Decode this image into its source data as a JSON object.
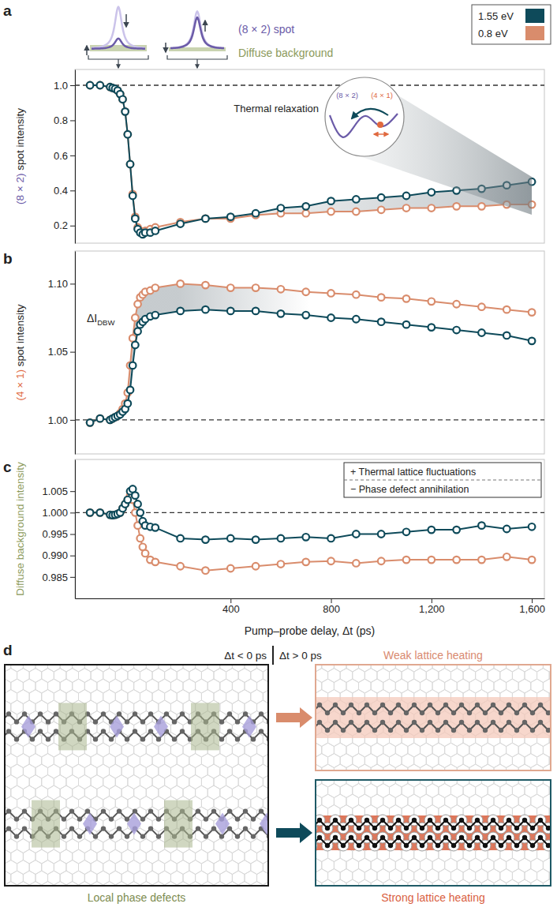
{
  "chart_data": [
    {
      "type": "line",
      "panel": "a",
      "y_label": "(8 × 2) spot intensity",
      "x": [
        -160,
        -120,
        -80,
        -70,
        -60,
        -50,
        -40,
        -30,
        -20,
        -10,
        0,
        10,
        20,
        30,
        40,
        50,
        60,
        80,
        100,
        200,
        300,
        400,
        500,
        600,
        700,
        800,
        900,
        1000,
        1100,
        1200,
        1300,
        1400,
        1500,
        1600
      ],
      "xlim": [
        -220,
        1650
      ],
      "ylim": [
        0.1,
        1.09
      ],
      "yticks": [
        0.2,
        0.4,
        0.6,
        0.8,
        {
          "value": 1,
          "label": "1.0"
        }
      ],
      "tick_labels": "y",
      "reference": 1,
      "legend": "top-right",
      "series": [
        {
          "name": "1.55 eV",
          "color": "#0e4a5a",
          "marker": "circle",
          "line_style": "solid",
          "values": [
            1.0,
            1.0,
            0.99,
            0.985,
            0.98,
            0.97,
            0.95,
            0.92,
            0.85,
            0.72,
            0.55,
            0.37,
            0.24,
            0.18,
            0.16,
            0.15,
            0.16,
            0.16,
            0.17,
            0.21,
            0.24,
            0.25,
            0.27,
            0.3,
            0.31,
            0.34,
            0.35,
            0.36,
            0.37,
            0.39,
            0.4,
            0.41,
            0.43,
            0.45
          ]
        },
        {
          "name": "0.8 eV",
          "color": "#d98c6c",
          "marker": "circle",
          "line_style": "solid",
          "values": [
            1.0,
            1.0,
            0.99,
            0.985,
            0.98,
            0.97,
            0.95,
            0.92,
            0.85,
            0.72,
            0.55,
            0.38,
            0.25,
            0.19,
            0.17,
            0.16,
            0.17,
            0.18,
            0.19,
            0.22,
            0.24,
            0.24,
            0.26,
            0.27,
            0.27,
            0.28,
            0.28,
            0.29,
            0.3,
            0.3,
            0.31,
            0.31,
            0.32,
            0.32
          ]
        }
      ],
      "annotations": {
        "spot": "(8 × 2) spot",
        "background": "Diffuse background",
        "relaxation": "Thermal relaxation",
        "inset_low": "(8 × 2)",
        "inset_high": "(4 × 1)"
      }
    },
    {
      "type": "line",
      "panel": "b",
      "y_label": "(4 × 1) spot intensity",
      "x": [
        -160,
        -120,
        -80,
        -70,
        -60,
        -50,
        -40,
        -30,
        -20,
        -10,
        0,
        10,
        20,
        30,
        40,
        50,
        60,
        80,
        100,
        200,
        300,
        400,
        500,
        600,
        700,
        800,
        900,
        1000,
        1100,
        1200,
        1300,
        1400,
        1500,
        1600
      ],
      "xlim": [
        -220,
        1650
      ],
      "ylim": [
        0.975,
        1.124
      ],
      "yticks": [
        {
          "value": 1,
          "label": "1.00"
        },
        1.05,
        {
          "value": 1.1,
          "label": "1.10"
        }
      ],
      "tick_labels": "y",
      "reference": 1,
      "series": [
        {
          "name": "1.55 eV",
          "color": "#0e4a5a",
          "marker": "circle",
          "line_style": "solid",
          "values": [
            0.998,
            1.001,
            1.0,
            1.001,
            1.002,
            1.003,
            1.004,
            1.006,
            1.008,
            1.012,
            1.022,
            1.04,
            1.055,
            1.065,
            1.07,
            1.072,
            1.074,
            1.076,
            1.077,
            1.08,
            1.081,
            1.08,
            1.08,
            1.078,
            1.077,
            1.075,
            1.074,
            1.072,
            1.07,
            1.068,
            1.066,
            1.064,
            1.062,
            1.058
          ]
        },
        {
          "name": "0.8 eV",
          "color": "#d98c6c",
          "marker": "circle",
          "line_style": "solid",
          "values": [
            0.998,
            1.001,
            1.0,
            1.001,
            1.002,
            1.003,
            1.005,
            1.008,
            1.012,
            1.02,
            1.04,
            1.06,
            1.075,
            1.085,
            1.09,
            1.092,
            1.094,
            1.095,
            1.097,
            1.1,
            1.099,
            1.097,
            1.097,
            1.096,
            1.094,
            1.093,
            1.092,
            1.09,
            1.089,
            1.087,
            1.085,
            1.083,
            1.081,
            1.079
          ]
        }
      ],
      "annotations": {
        "delta": "ΔI",
        "delta_subscript": "DBW"
      }
    },
    {
      "type": "line",
      "panel": "c",
      "y_label": "Diffuse background intensity",
      "x_label": "Pump–probe delay, Δt (ps)",
      "x": [
        -160,
        -120,
        -80,
        -70,
        -60,
        -50,
        -40,
        -30,
        -20,
        -10,
        0,
        10,
        20,
        30,
        40,
        50,
        60,
        80,
        100,
        200,
        300,
        400,
        500,
        600,
        700,
        800,
        900,
        1000,
        1100,
        1200,
        1300,
        1400,
        1500,
        1600
      ],
      "xlim": [
        -220,
        1650
      ],
      "ylim": [
        0.98,
        1.0124
      ],
      "xticks": [
        400,
        800,
        {
          "value": 1200,
          "label": "1,200"
        },
        {
          "value": 1600,
          "label": "1,600"
        }
      ],
      "yticks": [
        0.985,
        {
          "value": 0.99,
          "label": "0.990"
        },
        0.995,
        {
          "value": 1,
          "label": "1.000"
        },
        1.005
      ],
      "reference": 1,
      "series": [
        {
          "name": "1.55 eV",
          "color": "#0e4a5a",
          "marker": "circle",
          "line_style": "solid",
          "values": [
            1.0,
            1.0,
            0.9995,
            0.9994,
            0.9995,
            0.9997,
            1.0,
            1.001,
            1.002,
            1.003,
            1.005,
            1.0055,
            1.004,
            1.002,
            1.0,
            0.998,
            0.997,
            0.9967,
            0.9965,
            0.994,
            0.9937,
            0.994,
            0.9937,
            0.994,
            0.9943,
            0.994,
            0.995,
            0.995,
            0.9955,
            0.996,
            0.996,
            0.997,
            0.9962,
            0.9967
          ]
        },
        {
          "name": "0.8 eV",
          "color": "#d98c6c",
          "marker": "circle",
          "line_style": "solid",
          "values": [
            1.0,
            1.0,
            0.9995,
            0.9994,
            0.9995,
            0.9997,
            1.0,
            1.001,
            1.002,
            1.003,
            1.004,
            1.003,
            1.0,
            0.997,
            0.994,
            0.992,
            0.9905,
            0.989,
            0.9885,
            0.9875,
            0.9865,
            0.987,
            0.9875,
            0.988,
            0.9885,
            0.9887,
            0.9882,
            0.9887,
            0.989,
            0.989,
            0.989,
            0.989,
            0.9897,
            0.989
          ]
        }
      ],
      "annotations": {
        "plus": "+ Thermal lattice fluctuations",
        "minus": "− Phase defect annihilation"
      }
    }
  ],
  "diagram": {
    "panel": "d",
    "before": "Δt < 0 ps",
    "after": "Δt > 0 ps",
    "weak": "Weak lattice heating",
    "strong": "Strong lattice heating",
    "defects": "Local phase defects"
  }
}
